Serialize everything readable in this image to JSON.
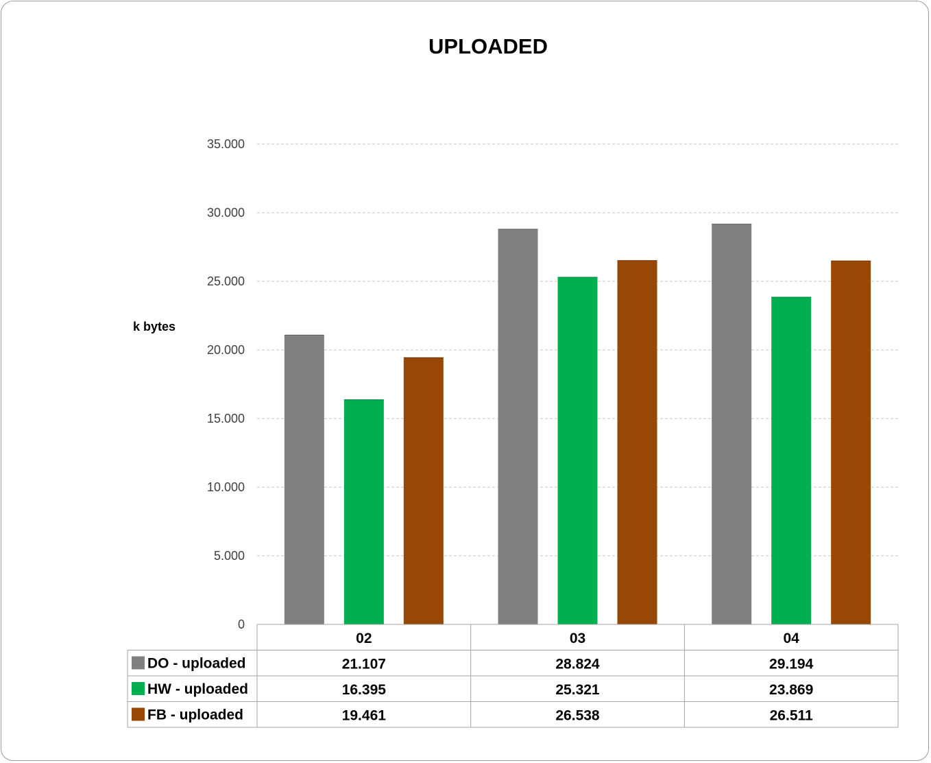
{
  "chart_data": {
    "type": "bar",
    "title": "UPLOADED",
    "ylabel": "k bytes",
    "xlabel": "",
    "categories": [
      "02",
      "03",
      "04"
    ],
    "ylim": [
      0,
      35000
    ],
    "yticks": [
      0,
      5000,
      10000,
      15000,
      20000,
      25000,
      30000,
      35000
    ],
    "ytick_labels": [
      "0",
      "5.000",
      "10.000",
      "15.000",
      "20.000",
      "25.000",
      "30.000",
      "35.000"
    ],
    "grid": true,
    "legend": "data-table",
    "series": [
      {
        "name": "DO - uploaded",
        "color": "#808080",
        "values": [
          21107,
          28824,
          29194
        ],
        "labels": [
          "21.107",
          "28.824",
          "29.194"
        ]
      },
      {
        "name": "HW - uploaded",
        "color": "#00b050",
        "values": [
          16395,
          25321,
          23869
        ],
        "labels": [
          "16.395",
          "25.321",
          "23.869"
        ]
      },
      {
        "name": "FB - uploaded",
        "color": "#974706",
        "values": [
          19461,
          26538,
          26511
        ],
        "labels": [
          "19.461",
          "26.538",
          "26.511"
        ]
      }
    ]
  }
}
